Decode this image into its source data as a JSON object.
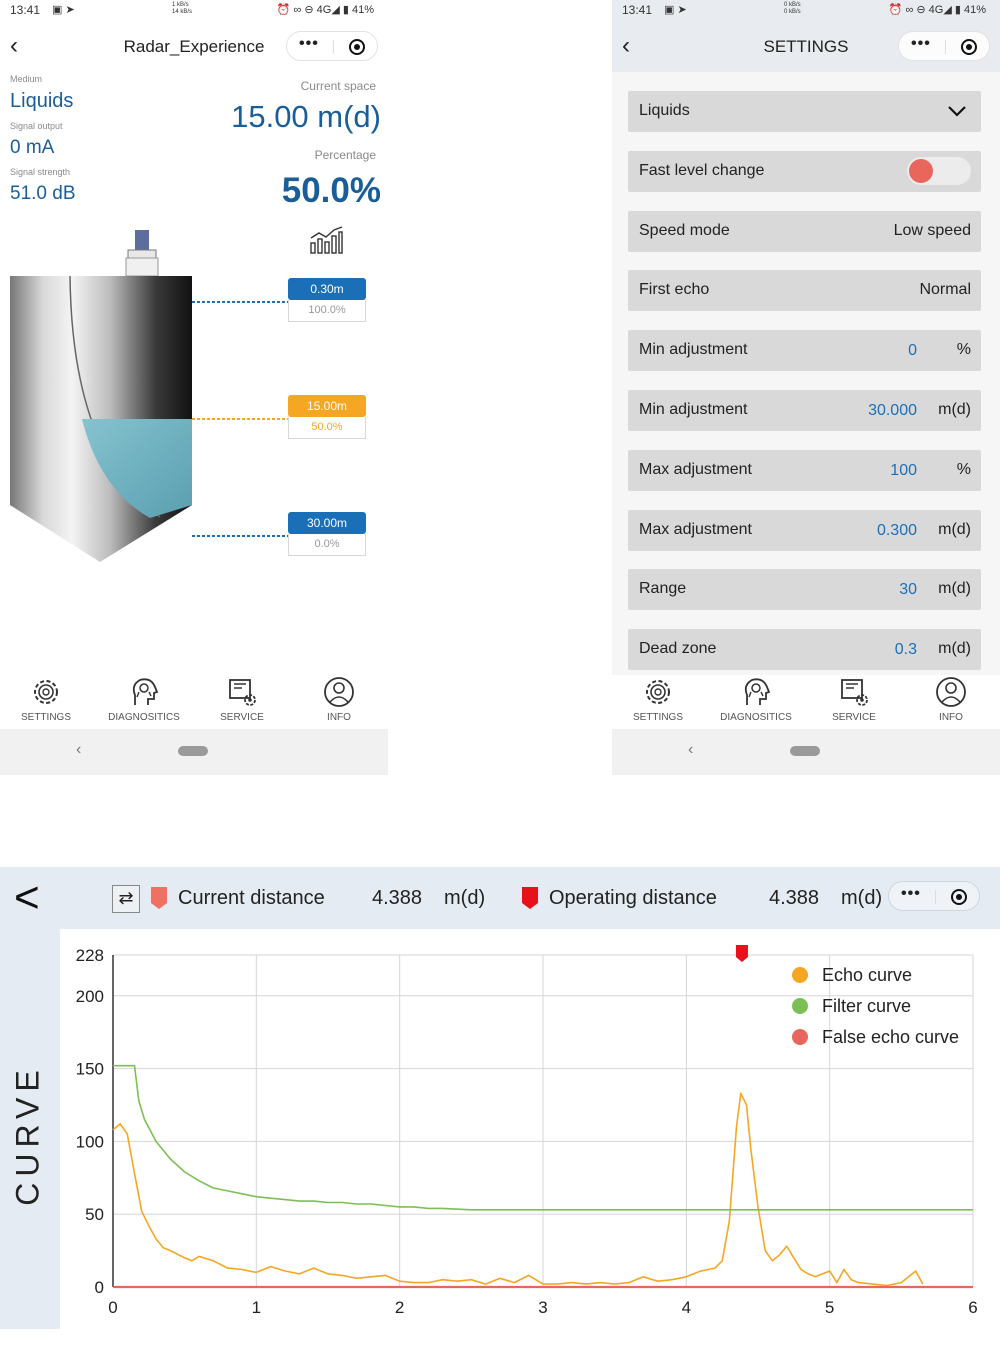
{
  "phone1": {
    "status": {
      "time": "13:41",
      "net_up": "1 kB/s",
      "net_down": "14 kB/s",
      "battery": "41%",
      "network": "4G"
    },
    "title": "Radar_Experience",
    "medium_label": "Medium",
    "medium_value": "Liquids",
    "signal_output_label": "Signal output",
    "signal_output_value": "0 mA",
    "signal_strength_label": "Signal strength",
    "signal_strength_value": "51.0 dB",
    "current_space_label": "Current space",
    "current_space_value": "15.00 m(d)",
    "percentage_label": "Percentage",
    "percentage_value": "50.0%",
    "fill_level_fraction": 0.5,
    "markers": [
      {
        "distance": "0.30m",
        "percent": "100.0%",
        "color": "#1a6fb7"
      },
      {
        "distance": "15.00m",
        "percent": "50.0%",
        "color": "#f5a623"
      },
      {
        "distance": "30.00m",
        "percent": "0.0%",
        "color": "#1a6fb7"
      }
    ]
  },
  "phone2": {
    "status": {
      "time": "13:41",
      "net_up": "0 kB/s",
      "net_down": "0 kB/s",
      "battery": "41%",
      "network": "4G"
    },
    "title": "SETTINGS",
    "medium_select": "Liquids",
    "fast_level_label": "Fast level change",
    "speed_label": "Speed mode",
    "speed_value": "Low speed",
    "first_echo_label": "First echo",
    "first_echo_value": "Normal",
    "rows": [
      {
        "label": "Min adjustment",
        "value": "0",
        "unit": "%"
      },
      {
        "label": "Min adjustment",
        "value": "30.000",
        "unit": "m(d)"
      },
      {
        "label": "Max adjustment",
        "value": "100",
        "unit": "%"
      },
      {
        "label": "Max adjustment",
        "value": "0.300",
        "unit": "m(d)"
      },
      {
        "label": "Range",
        "value": "30",
        "unit": "m(d)"
      },
      {
        "label": "Dead zone",
        "value": "0.3",
        "unit": "m(d)"
      }
    ]
  },
  "tabs": [
    {
      "label": "SETTINGS",
      "icon": "gear-icon"
    },
    {
      "label": "DIAGNOSITICS",
      "icon": "diagnostics-icon"
    },
    {
      "label": "SERVICE",
      "icon": "service-icon"
    },
    {
      "label": "INFO",
      "icon": "info-icon"
    }
  ],
  "curve": {
    "side_label": "CURVE",
    "current_distance_label": "Current distance",
    "current_distance_value": "4.388",
    "current_distance_unit": "m(d)",
    "operating_distance_label": "Operating distance",
    "operating_distance_value": "4.388",
    "operating_distance_unit": "m(d)",
    "current_flag_color": "#f07064",
    "operating_flag_color": "#e8101a"
  },
  "chart_data": {
    "type": "line",
    "xlim": [
      0,
      6
    ],
    "ylim": [
      0,
      228
    ],
    "x_ticks": [
      "0",
      "1",
      "2",
      "3",
      "4",
      "5",
      "6"
    ],
    "y_ticks": [
      "0",
      "50",
      "100",
      "150",
      "200",
      "228"
    ],
    "y_tick_values": [
      0,
      50,
      100,
      150,
      200,
      228
    ],
    "grid": true,
    "legend_position": "top-right",
    "operating_marker_x": 4.388,
    "series": [
      {
        "name": "Echo curve",
        "color": "#f5a623",
        "x": [
          0,
          0.05,
          0.1,
          0.15,
          0.2,
          0.25,
          0.3,
          0.35,
          0.4,
          0.5,
          0.55,
          0.6,
          0.7,
          0.8,
          0.9,
          1.0,
          1.1,
          1.2,
          1.3,
          1.4,
          1.5,
          1.6,
          1.7,
          1.8,
          1.9,
          2.0,
          2.1,
          2.2,
          2.3,
          2.4,
          2.5,
          2.6,
          2.7,
          2.8,
          2.9,
          3.0,
          3.1,
          3.2,
          3.3,
          3.4,
          3.5,
          3.6,
          3.7,
          3.8,
          3.9,
          4.0,
          4.1,
          4.2,
          4.25,
          4.3,
          4.35,
          4.38,
          4.42,
          4.45,
          4.5,
          4.55,
          4.6,
          4.65,
          4.7,
          4.75,
          4.8,
          4.85,
          4.9,
          5.0,
          5.05,
          5.1,
          5.15,
          5.2,
          5.3,
          5.4,
          5.5,
          5.6,
          5.65
        ],
        "y": [
          108,
          112,
          105,
          78,
          52,
          42,
          33,
          27,
          25,
          20,
          18,
          21,
          18,
          13,
          12,
          10,
          14,
          11,
          9,
          13,
          9,
          8,
          6,
          7,
          8,
          4,
          3,
          3,
          5,
          4,
          5,
          2,
          6,
          3,
          8,
          2,
          2,
          3,
          2,
          3,
          2,
          3,
          7,
          4,
          5,
          7,
          11,
          13,
          18,
          45,
          110,
          133,
          125,
          95,
          55,
          25,
          18,
          22,
          28,
          20,
          12,
          9,
          7,
          11,
          3,
          12,
          5,
          3,
          2,
          1,
          3,
          11,
          2
        ]
      },
      {
        "name": "Filter curve",
        "color": "#7cbf54",
        "x": [
          0,
          0.15,
          0.18,
          0.22,
          0.3,
          0.4,
          0.5,
          0.6,
          0.7,
          0.8,
          0.9,
          1.0,
          1.1,
          1.2,
          1.3,
          1.4,
          1.5,
          1.6,
          1.7,
          1.8,
          1.9,
          2.0,
          2.1,
          2.2,
          2.3,
          2.5,
          3.0,
          3.5,
          4.0,
          4.5,
          5.0,
          5.5,
          6.0
        ],
        "y": [
          152,
          152,
          128,
          115,
          100,
          88,
          79,
          73,
          68,
          66,
          64,
          62,
          61,
          60,
          59,
          59,
          58,
          58,
          57,
          57,
          56,
          55,
          55,
          54,
          54,
          53,
          53,
          53,
          53,
          53,
          53,
          53,
          53
        ]
      },
      {
        "name": "False echo curve",
        "color": "#e9665d",
        "x": [
          0,
          1,
          2,
          3,
          4,
          5,
          6
        ],
        "y": [
          0,
          0,
          0,
          0,
          0,
          0,
          0
        ]
      }
    ]
  }
}
